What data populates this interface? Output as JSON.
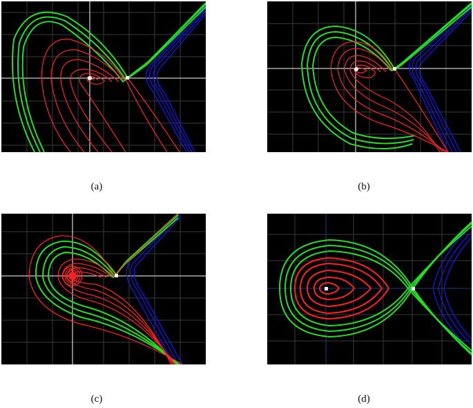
{
  "colors": {
    "background": "#000000",
    "grid": "#3a3a3a",
    "axes_white": "#ffffff",
    "axes_blue": "#1e3a8a",
    "inside_orbits": "#ff2020",
    "separatrix_band": "#22dd22",
    "outside_orbits": "#1515ff",
    "fixed_point": "#ffffff"
  },
  "panels": [
    {
      "caption": "(a)",
      "axes_color": "white"
    },
    {
      "caption": "(b)",
      "axes_color": "white"
    },
    {
      "caption": "(c)",
      "axes_color": "white"
    },
    {
      "caption": "(d)",
      "axes_color": "blue"
    }
  ]
}
